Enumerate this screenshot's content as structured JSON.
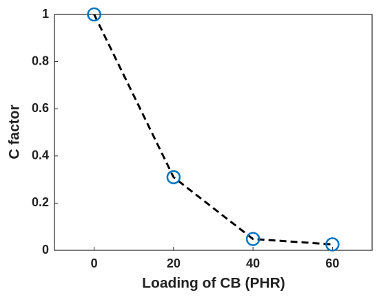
{
  "chart_data": {
    "type": "line",
    "x": [
      0,
      20,
      40,
      60
    ],
    "series": [
      {
        "values": [
          1,
          0.31,
          0.048,
          0.025
        ],
        "color": "#000000",
        "marker_color": "#0072bd",
        "line_style": "dashed",
        "marker": "circle"
      }
    ],
    "xlabel": "Loading of CB (PHR)",
    "ylabel": "C factor",
    "xlim": [
      -10,
      70
    ],
    "ylim": [
      0,
      1
    ],
    "xticks": [
      0,
      20,
      40,
      60
    ],
    "yticks": [
      0,
      0.2,
      0.4,
      0.6,
      0.8,
      1
    ],
    "grid": false
  }
}
